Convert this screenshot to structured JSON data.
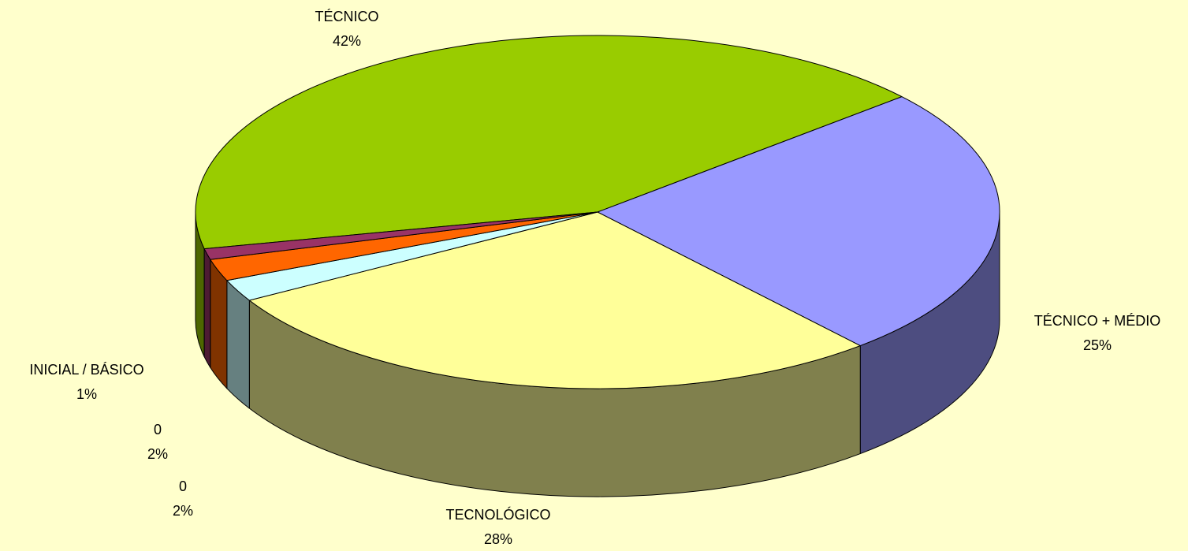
{
  "chart_data": {
    "type": "pie3d",
    "categories": [
      "TÉCNICO",
      "TÉCNICO + MÉDIO",
      "TECNOLÓGICO",
      "0",
      "0",
      "INICIAL / BÁSICO"
    ],
    "values": [
      42,
      25,
      28,
      2,
      2,
      1
    ],
    "value_labels": [
      "42%",
      "25%",
      "28%",
      "2%",
      "2%",
      "1%"
    ],
    "colors": [
      "#99cc00",
      "#9999ff",
      "#ffff99",
      "#ccffff",
      "#ff6600",
      "#993366"
    ]
  }
}
